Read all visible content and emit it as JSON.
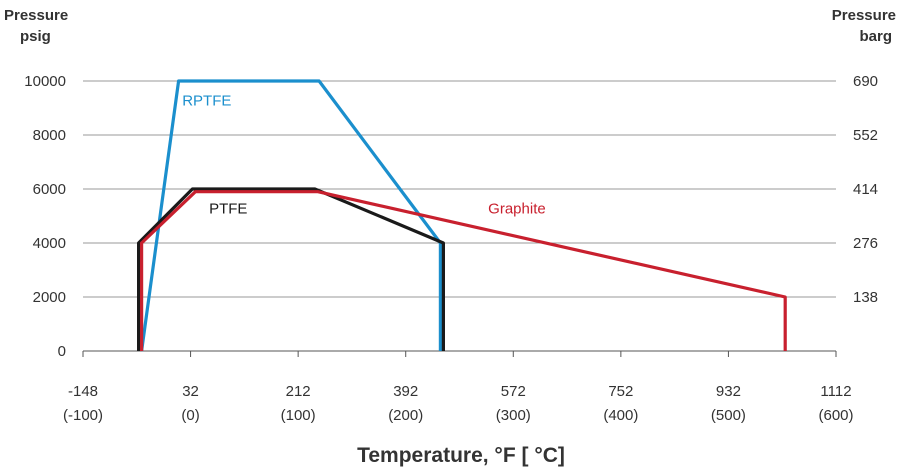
{
  "chart_data": {
    "type": "line",
    "left_axis_title": [
      "Pressure",
      "psig"
    ],
    "right_axis_title": [
      "Pressure",
      "barg"
    ],
    "xlabel": "Temperature, °F [ °C]",
    "xlim": [
      -148,
      1112
    ],
    "ylim": [
      0,
      10000
    ],
    "grid": "horizontal",
    "x_ticks": [
      {
        "value": -148,
        "f": "-148",
        "c": "(-100)"
      },
      {
        "value": 32,
        "f": "32",
        "c": "(0)"
      },
      {
        "value": 212,
        "f": "212",
        "c": "(100)"
      },
      {
        "value": 392,
        "f": "392",
        "c": "(200)"
      },
      {
        "value": 572,
        "f": "572",
        "c": "(300)"
      },
      {
        "value": 752,
        "f": "752",
        "c": "(400)"
      },
      {
        "value": 932,
        "f": "932",
        "c": "(500)"
      },
      {
        "value": 1112,
        "f": "1112",
        "c": "(600)"
      }
    ],
    "y_ticks": [
      {
        "value": 0,
        "label": "0"
      },
      {
        "value": 2000,
        "label": "2000"
      },
      {
        "value": 4000,
        "label": "4000"
      },
      {
        "value": 6000,
        "label": "6000"
      },
      {
        "value": 8000,
        "label": "8000"
      },
      {
        "value": 10000,
        "label": "10000"
      }
    ],
    "y_right_ticks": [
      {
        "value": 2000,
        "label": "138"
      },
      {
        "value": 4000,
        "label": "276"
      },
      {
        "value": 6000,
        "label": "414"
      },
      {
        "value": 8000,
        "label": "552"
      },
      {
        "value": 10000,
        "label": "690"
      }
    ],
    "series": [
      {
        "name": "RPTFE",
        "color": "#1b8fcd",
        "points": [
          [
            -50,
            0
          ],
          [
            12,
            10000
          ],
          [
            247,
            10000
          ],
          [
            450,
            4000
          ],
          [
            450,
            0
          ]
        ]
      },
      {
        "name": "PTFE",
        "color": "#1a1a1a",
        "points": [
          [
            -55,
            0
          ],
          [
            -55,
            4000
          ],
          [
            35,
            6000
          ],
          [
            240,
            6000
          ],
          [
            455,
            4000
          ],
          [
            455,
            0
          ]
        ]
      },
      {
        "name": "Graphite",
        "color": "#c8202e",
        "points": [
          [
            -50,
            0
          ],
          [
            -50,
            4000
          ],
          [
            40,
            5900
          ],
          [
            245,
            5900
          ],
          [
            1027,
            2000
          ],
          [
            1027,
            0
          ]
        ]
      }
    ],
    "series_labels": [
      {
        "name": "RPTFE",
        "x": 18,
        "y": 9100
      },
      {
        "name": "PTFE",
        "x": 63,
        "y": 5100
      },
      {
        "name": "Graphite",
        "x": 530,
        "y": 5100
      }
    ]
  }
}
